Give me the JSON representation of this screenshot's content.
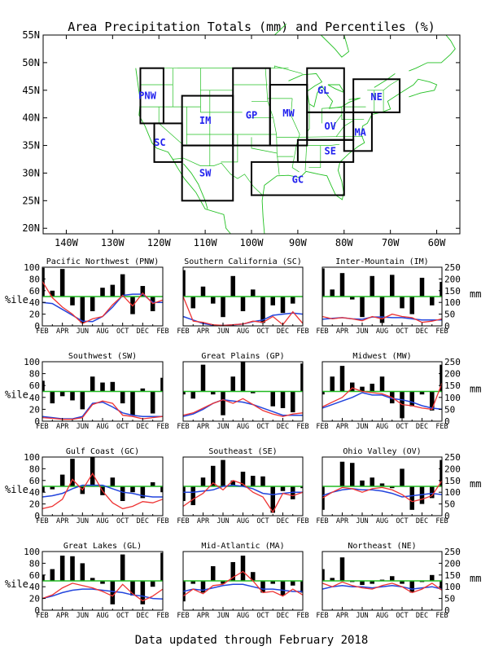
{
  "title": "Area Precipitation Totals (mm) and Percentiles (%)",
  "footer": "Data updated through February 2018",
  "map": {
    "lat_ticks": [
      "55N",
      "50N",
      "45N",
      "40N",
      "35N",
      "30N",
      "25N",
      "20N"
    ],
    "lat_values": [
      55,
      50,
      45,
      40,
      35,
      30,
      25,
      20
    ],
    "lon_ticks": [
      "140W",
      "130W",
      "120W",
      "110W",
      "100W",
      "90W",
      "80W",
      "70W",
      "60W"
    ],
    "lon_values": [
      -140,
      -130,
      -120,
      -110,
      -100,
      -90,
      -80,
      -70,
      -60
    ],
    "lon_range": [
      -145,
      -55
    ],
    "lat_range": [
      19,
      55
    ],
    "regions": [
      {
        "code": "PNW",
        "lon": [
          -124,
          -119
        ],
        "lat": [
          39,
          49
        ],
        "label_pos": [
          -122.5,
          44
        ]
      },
      {
        "code": "SC",
        "lon": [
          -121,
          -115
        ],
        "lat": [
          32,
          39
        ],
        "label_pos": [
          -119.8,
          35.5
        ]
      },
      {
        "code": "IM",
        "lon": [
          -115,
          -104
        ],
        "lat": [
          35,
          44
        ],
        "label_pos": [
          -110,
          39.5
        ]
      },
      {
        "code": "SW",
        "lon": [
          -115,
          -104
        ],
        "lat": [
          25,
          35
        ],
        "label_pos": [
          -110,
          30
        ]
      },
      {
        "code": "GP",
        "lon": [
          -104,
          -96
        ],
        "lat": [
          35,
          49
        ],
        "label_pos": [
          -100,
          40.5
        ]
      },
      {
        "code": "MW",
        "lon": [
          -96,
          -88
        ],
        "lat": [
          35,
          46
        ],
        "label_pos": [
          -92,
          40.8
        ]
      },
      {
        "code": "GL",
        "lon": [
          -88,
          -80
        ],
        "lat": [
          41,
          49
        ],
        "label_pos": [
          -84.5,
          45
        ]
      },
      {
        "code": "OV",
        "lon": [
          -88,
          -78
        ],
        "lat": [
          36,
          41
        ],
        "label_pos": [
          -83,
          38.5
        ]
      },
      {
        "code": "MA",
        "lon": [
          -80,
          -74
        ],
        "lat": [
          34,
          41
        ],
        "label_pos": [
          -76.5,
          37.4
        ]
      },
      {
        "code": "NE",
        "lon": [
          -78,
          -68
        ],
        "lat": [
          41,
          47
        ],
        "label_pos": [
          -73,
          43.8
        ]
      },
      {
        "code": "SE",
        "lon": [
          -90,
          -78
        ],
        "lat": [
          32,
          36
        ],
        "label_pos": [
          -83,
          34
        ]
      },
      {
        "code": "GC",
        "lon": [
          -100,
          -80
        ],
        "lat": [
          26,
          32
        ],
        "label_pos": [
          -90,
          28.8
        ]
      }
    ],
    "colors": {
      "land_lines": "#22c022",
      "boxes": "#000000",
      "labels": "#2222ee"
    }
  },
  "panel_axes": {
    "pct_label": "%ile",
    "mm_label": "mm",
    "pct_ticks": [
      "0",
      "20",
      "40",
      "60",
      "80",
      "100"
    ],
    "pct_values": [
      0,
      20,
      40,
      60,
      80,
      100
    ],
    "mm_ticks": [
      "0",
      "50",
      "100",
      "150",
      "200",
      "250"
    ],
    "mm_values": [
      0,
      50,
      100,
      150,
      200,
      250
    ],
    "x_ticks": [
      "FEB",
      "APR",
      "JUN",
      "AUG",
      "OCT",
      "DEC",
      "FEB"
    ],
    "x_tick_index": [
      0,
      2,
      4,
      6,
      8,
      10,
      12
    ],
    "ylim_pct": [
      0,
      100
    ],
    "ylim_mm": [
      0,
      250
    ],
    "fiftieth_percentile": 50,
    "colors": {
      "bars": "#000000",
      "normal_line": "#2244dd",
      "actual_line": "#ee3333",
      "median_line": "#22bb22"
    }
  },
  "chart_data": [
    {
      "type": "bar",
      "title": "Pacific Northwest (PNW)",
      "percentile": [
        99,
        60,
        97,
        35,
        5,
        25,
        65,
        70,
        88,
        20,
        68,
        25,
        50
      ],
      "precip_mm": [
        190,
        120,
        80,
        50,
        10,
        30,
        40,
        90,
        130,
        85,
        140,
        95,
        110
      ],
      "normal_mm": [
        100,
        95,
        70,
        45,
        20,
        18,
        40,
        80,
        130,
        135,
        135,
        100,
        100
      ]
    },
    {
      "type": "bar",
      "title": "Southern California (SC)",
      "percentile": [
        95,
        30,
        67,
        38,
        15,
        85,
        25,
        62,
        5,
        35,
        22,
        38,
        50
      ],
      "precip_mm": [
        125,
        20,
        15,
        5,
        2,
        5,
        8,
        20,
        15,
        40,
        5,
        60,
        10
      ],
      "normal_mm": [
        40,
        25,
        10,
        3,
        2,
        4,
        8,
        18,
        25,
        45,
        50,
        55,
        50
      ]
    },
    {
      "type": "bar",
      "title": "Inter-Mountain (IM)",
      "percentile": [
        98,
        62,
        90,
        45,
        15,
        85,
        5,
        87,
        30,
        20,
        82,
        35,
        75
      ],
      "precip_mm": [
        40,
        30,
        35,
        30,
        22,
        40,
        30,
        50,
        40,
        35,
        15,
        20,
        30
      ],
      "normal_mm": [
        28,
        32,
        35,
        30,
        28,
        38,
        38,
        35,
        35,
        30,
        25,
        25,
        25
      ]
    },
    {
      "type": "bar",
      "title": "Southwest (SW)",
      "percentile": [
        68,
        30,
        42,
        35,
        20,
        75,
        65,
        66,
        30,
        10,
        55,
        13,
        73
      ],
      "precip_mm": [
        15,
        12,
        8,
        8,
        15,
        70,
        85,
        75,
        25,
        20,
        10,
        15,
        20
      ],
      "normal_mm": [
        20,
        15,
        10,
        10,
        20,
        75,
        80,
        60,
        35,
        25,
        20,
        20,
        20
      ]
    },
    {
      "type": "bar",
      "title": "Great Plains (GP)",
      "percentile": [
        45,
        38,
        95,
        45,
        10,
        75,
        100,
        47,
        50,
        25,
        22,
        15,
        97
      ],
      "precip_mm": [
        25,
        35,
        55,
        75,
        90,
        75,
        95,
        70,
        45,
        30,
        20,
        30,
        35
      ],
      "normal_mm": [
        20,
        30,
        50,
        75,
        90,
        85,
        80,
        70,
        55,
        40,
        25,
        25,
        25
      ]
    },
    {
      "type": "bar",
      "title": "Midwest (MW)",
      "percentile": [
        45,
        75,
        93,
        65,
        58,
        63,
        75,
        30,
        5,
        25,
        45,
        18,
        95
      ],
      "precip_mm": [
        60,
        80,
        100,
        140,
        125,
        120,
        115,
        100,
        70,
        65,
        55,
        50,
        160
      ],
      "normal_mm": [
        55,
        70,
        85,
        100,
        120,
        110,
        110,
        95,
        90,
        80,
        65,
        55,
        50
      ]
    },
    {
      "type": "bar",
      "title": "Gulf Coast (GC)",
      "percentile": [
        40,
        45,
        70,
        97,
        37,
        100,
        35,
        65,
        25,
        40,
        30,
        57,
        40
      ],
      "precip_mm": [
        30,
        40,
        70,
        155,
        110,
        180,
        105,
        55,
        30,
        40,
        60,
        55,
        70
      ],
      "normal_mm": [
        80,
        85,
        95,
        115,
        130,
        130,
        130,
        115,
        100,
        95,
        85,
        80,
        80
      ]
    },
    {
      "type": "bar",
      "title": "Southeast (SE)",
      "percentile": [
        25,
        18,
        65,
        85,
        95,
        60,
        75,
        68,
        67,
        5,
        42,
        28,
        47
      ],
      "precip_mm": [
        40,
        70,
        95,
        140,
        110,
        150,
        135,
        100,
        80,
        15,
        95,
        85,
        100
      ],
      "normal_mm": [
        100,
        100,
        105,
        110,
        125,
        130,
        125,
        115,
        95,
        90,
        95,
        100,
        100
      ]
    },
    {
      "type": "bar",
      "title": "Ohio Valley (OV)",
      "percentile": [
        10,
        50,
        92,
        90,
        60,
        65,
        55,
        47,
        80,
        10,
        20,
        30,
        95
      ],
      "precip_mm": [
        75,
        100,
        120,
        115,
        100,
        115,
        120,
        110,
        90,
        60,
        70,
        85,
        150
      ],
      "normal_mm": [
        85,
        100,
        110,
        115,
        110,
        110,
        105,
        95,
        80,
        85,
        90,
        95,
        90
      ]
    },
    {
      "type": "bar",
      "title": "Great Lakes (GL)",
      "percentile": [
        60,
        70,
        93,
        92,
        80,
        55,
        45,
        10,
        95,
        25,
        10,
        40,
        98
      ],
      "precip_mm": [
        50,
        65,
        95,
        115,
        105,
        95,
        80,
        60,
        110,
        70,
        40,
        60,
        90
      ],
      "normal_mm": [
        50,
        60,
        75,
        85,
        90,
        90,
        85,
        80,
        75,
        65,
        60,
        50,
        48
      ]
    },
    {
      "type": "bar",
      "title": "Mid-Atlantic (MA)",
      "percentile": [
        15,
        45,
        30,
        75,
        45,
        82,
        93,
        65,
        30,
        45,
        25,
        42,
        30
      ],
      "precip_mm": [
        60,
        90,
        70,
        105,
        110,
        140,
        165,
        125,
        75,
        80,
        60,
        90,
        65
      ],
      "normal_mm": [
        80,
        90,
        85,
        95,
        105,
        110,
        110,
        100,
        90,
        90,
        85,
        80,
        80
      ]
    },
    {
      "type": "bar",
      "title": "Northeast (NE)",
      "percentile": [
        70,
        55,
        90,
        48,
        43,
        45,
        52,
        58,
        45,
        30,
        48,
        60,
        35
      ],
      "precip_mm": [
        115,
        100,
        120,
        105,
        95,
        90,
        105,
        115,
        100,
        75,
        90,
        115,
        85
      ],
      "normal_mm": [
        90,
        100,
        105,
        100,
        100,
        95,
        100,
        105,
        100,
        90,
        95,
        100,
        90
      ]
    }
  ]
}
